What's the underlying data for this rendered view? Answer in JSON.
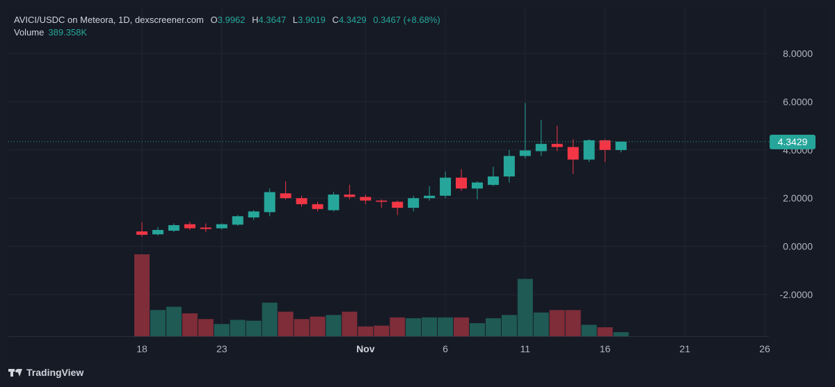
{
  "legend": {
    "symbol": "AVICI/USDC on Meteora, 1D, dexscreener.com",
    "o_label": "O",
    "o_value": "3.9962",
    "h_label": "H",
    "h_value": "4.3647",
    "l_label": "L",
    "l_value": "3.9019",
    "c_label": "C",
    "c_value": "4.3429",
    "change": "0.3467 (+8.68%)",
    "volume_label": "Volume",
    "volume_value": "389.358K"
  },
  "brand": {
    "name": "TradingView",
    "icon": "tradingview-logo-icon"
  },
  "colors": {
    "up": "#26a69a",
    "down": "#f23645",
    "volume_up": "#1f5a55",
    "volume_down": "#7e2d39",
    "background": "#161a25",
    "grid": "#232734"
  },
  "chart_data": {
    "type": "candlestick",
    "price_axis": {
      "ticks": [
        "8.0000",
        "6.0000",
        "4.0000",
        "2.0000",
        "0.0000",
        "-2.0000"
      ],
      "ylim": [
        -3.7,
        9.4
      ]
    },
    "time_axis": {
      "ticks": [
        "18",
        "23",
        "Nov",
        "6",
        "11",
        "16",
        "21",
        "26"
      ]
    },
    "last_price_label": "4.3429",
    "candles": [
      {
        "d": "Oct 18",
        "o": 0.62,
        "h": 1.0,
        "l": 0.4,
        "c": 0.48
      },
      {
        "d": "Oct 19",
        "o": 0.5,
        "h": 0.8,
        "l": 0.45,
        "c": 0.68
      },
      {
        "d": "Oct 20",
        "o": 0.65,
        "h": 0.95,
        "l": 0.6,
        "c": 0.88
      },
      {
        "d": "Oct 21",
        "o": 0.92,
        "h": 1.02,
        "l": 0.68,
        "c": 0.75
      },
      {
        "d": "Oct 22",
        "o": 0.78,
        "h": 0.95,
        "l": 0.6,
        "c": 0.72
      },
      {
        "d": "Oct 23",
        "o": 0.75,
        "h": 0.95,
        "l": 0.7,
        "c": 0.92
      },
      {
        "d": "Oct 24",
        "o": 0.9,
        "h": 1.3,
        "l": 0.85,
        "c": 1.25
      },
      {
        "d": "Oct 25",
        "o": 1.2,
        "h": 1.5,
        "l": 1.1,
        "c": 1.45
      },
      {
        "d": "Oct 26",
        "o": 1.42,
        "h": 2.4,
        "l": 1.25,
        "c": 2.25
      },
      {
        "d": "Oct 27",
        "o": 2.2,
        "h": 2.7,
        "l": 1.95,
        "c": 2.0
      },
      {
        "d": "Oct 28",
        "o": 2.0,
        "h": 2.1,
        "l": 1.65,
        "c": 1.75
      },
      {
        "d": "Oct 29",
        "o": 1.75,
        "h": 1.85,
        "l": 1.45,
        "c": 1.55
      },
      {
        "d": "Oct 30",
        "o": 1.5,
        "h": 2.25,
        "l": 1.45,
        "c": 2.15
      },
      {
        "d": "Oct 31",
        "o": 2.15,
        "h": 2.55,
        "l": 1.95,
        "c": 2.05
      },
      {
        "d": "Nov 1",
        "o": 2.05,
        "h": 2.15,
        "l": 1.75,
        "c": 1.9
      },
      {
        "d": "Nov 2",
        "o": 1.9,
        "h": 1.95,
        "l": 1.6,
        "c": 1.85
      },
      {
        "d": "Nov 3",
        "o": 1.85,
        "h": 1.9,
        "l": 1.3,
        "c": 1.6
      },
      {
        "d": "Nov 4",
        "o": 1.6,
        "h": 2.1,
        "l": 1.45,
        "c": 2.0
      },
      {
        "d": "Nov 5",
        "o": 2.0,
        "h": 2.5,
        "l": 1.9,
        "c": 2.1
      },
      {
        "d": "Nov 6",
        "o": 2.1,
        "h": 3.1,
        "l": 2.0,
        "c": 2.85
      },
      {
        "d": "Nov 7",
        "o": 2.85,
        "h": 3.2,
        "l": 2.3,
        "c": 2.4
      },
      {
        "d": "Nov 8",
        "o": 2.4,
        "h": 2.7,
        "l": 1.95,
        "c": 2.65
      },
      {
        "d": "Nov 9",
        "o": 2.55,
        "h": 3.3,
        "l": 2.5,
        "c": 2.9
      },
      {
        "d": "Nov 10",
        "o": 2.9,
        "h": 4.0,
        "l": 2.65,
        "c": 3.75
      },
      {
        "d": "Nov 11",
        "o": 3.75,
        "h": 5.95,
        "l": 3.65,
        "c": 3.98
      },
      {
        "d": "Nov 12",
        "o": 3.95,
        "h": 5.25,
        "l": 3.75,
        "c": 4.25
      },
      {
        "d": "Nov 13",
        "o": 4.25,
        "h": 5.0,
        "l": 3.95,
        "c": 4.12
      },
      {
        "d": "Nov 14",
        "o": 4.12,
        "h": 4.45,
        "l": 3.0,
        "c": 3.6
      },
      {
        "d": "Nov 15",
        "o": 3.6,
        "h": 4.45,
        "l": 3.5,
        "c": 4.4
      },
      {
        "d": "Nov 16",
        "o": 4.4,
        "h": 4.45,
        "l": 3.5,
        "c": 4.0
      },
      {
        "d": "Nov 17",
        "o": 3.9962,
        "h": 4.3647,
        "l": 3.9019,
        "c": 4.3429
      }
    ],
    "volume": [
      100,
      32,
      36,
      28,
      21,
      15,
      20,
      19,
      41,
      30,
      21,
      24,
      26,
      30,
      12,
      13,
      23,
      22,
      23,
      23,
      23,
      16,
      22,
      26,
      70,
      29,
      32,
      32,
      14,
      11,
      5
    ]
  }
}
